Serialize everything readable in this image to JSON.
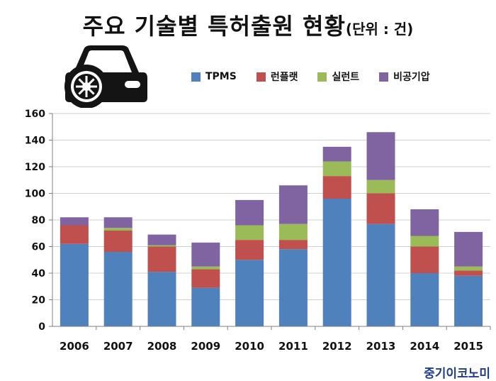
{
  "title": "주요 기술별 특허출원 현황",
  "unit_label": "(단위 : 건)",
  "watermark": "중기이코노미",
  "icon": "car-icon",
  "chart_data": {
    "type": "bar",
    "stacked": true,
    "title": "주요 기술별 특허출원 현황(단위 : 건)",
    "xlabel": "",
    "ylabel": "",
    "categories": [
      "2006",
      "2007",
      "2008",
      "2009",
      "2010",
      "2011",
      "2012",
      "2013",
      "2014",
      "2015"
    ],
    "ylim": [
      0,
      160
    ],
    "yticks": [
      0,
      20,
      40,
      60,
      80,
      100,
      120,
      140,
      160
    ],
    "grid": true,
    "legend_position": "top-right",
    "series": [
      {
        "name": "TPMS",
        "color": "#4f81bd",
        "values": [
          62,
          56,
          41,
          29,
          50,
          58,
          96,
          77,
          40,
          38
        ]
      },
      {
        "name": "런플랫",
        "color": "#c0504d",
        "values": [
          14,
          16,
          19,
          14,
          15,
          7,
          17,
          23,
          20,
          4
        ]
      },
      {
        "name": "실런트",
        "color": "#9bbb59",
        "values": [
          0,
          2,
          1,
          2,
          11,
          12,
          11,
          10,
          8,
          3
        ]
      },
      {
        "name": "비공기압",
        "color": "#8064a2",
        "values": [
          6,
          8,
          8,
          18,
          19,
          29,
          11,
          36,
          20,
          26
        ]
      }
    ]
  }
}
